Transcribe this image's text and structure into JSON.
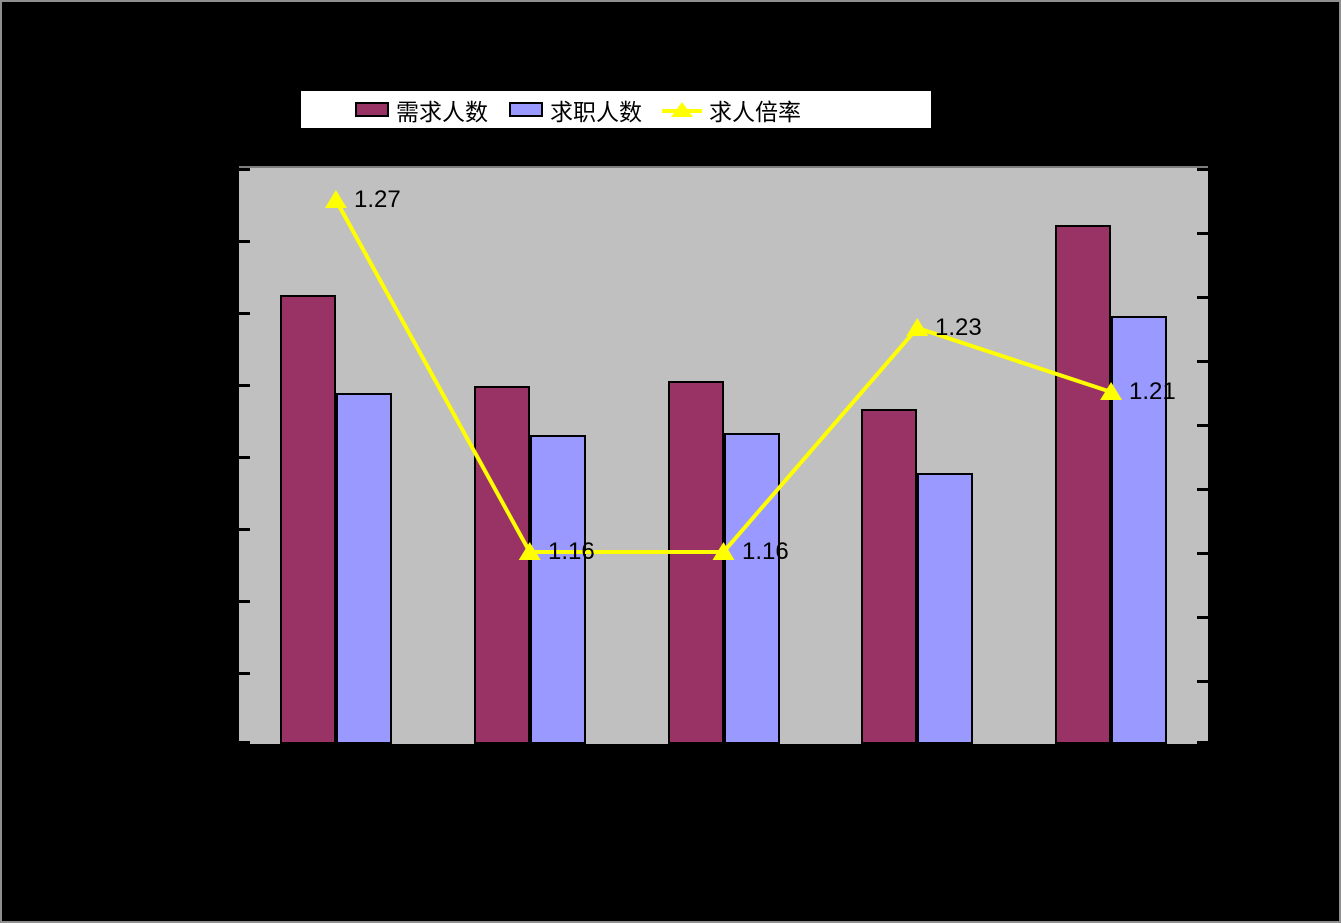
{
  "colors": {
    "background": "#000000",
    "canvas_border": "#8f8f8f",
    "plot_background": "#C0C0C0",
    "demand_bar": "#993366",
    "seekers_bar": "#9999FF",
    "ratio_line": "#FFFF00",
    "bar_border": "#000000",
    "legend_background": "#FFFFFF",
    "data_label_text": "#000000"
  },
  "legend": {
    "position": "top",
    "items": [
      {
        "label": "需求人数",
        "marker": "bar-swatch",
        "color": "#993366"
      },
      {
        "label": "求职人数",
        "marker": "bar-swatch",
        "color": "#9999FF"
      },
      {
        "label": "求人倍率",
        "marker": "line-with-triangle",
        "color": "#FFFF00"
      }
    ]
  },
  "chart_data": {
    "type": "bar",
    "combo": "bar+line",
    "group_count": 5,
    "grid": false,
    "legend_position": "top",
    "x_axis": {
      "labels_visible": false
    },
    "left_axis": {
      "labels_visible": false,
      "tick_intervals": 8,
      "min_fraction": 0,
      "max_fraction": 1
    },
    "right_axis": {
      "labels_visible": false,
      "tick_intervals": 9,
      "min": 1.1,
      "max": 1.28,
      "tick_step": 0.02
    },
    "series": [
      {
        "name": "需求人数",
        "type": "bar",
        "axis": "left",
        "color": "#993366",
        "height_fractions": [
          0.7795,
          0.6215,
          0.6302,
          0.5816,
          0.901
        ]
      },
      {
        "name": "求职人数",
        "type": "bar",
        "axis": "left",
        "color": "#9999FF",
        "height_fractions": [
          0.6094,
          0.5365,
          0.5399,
          0.4705,
          0.7431
        ]
      },
      {
        "name": "求人倍率",
        "type": "line",
        "axis": "right",
        "color": "#FFFF00",
        "marker": "triangle",
        "values": [
          1.27,
          1.16,
          1.16,
          1.23,
          1.21
        ],
        "labels": [
          "1.27",
          "1.16",
          "1.16",
          "1.23",
          "1.21"
        ]
      }
    ]
  }
}
